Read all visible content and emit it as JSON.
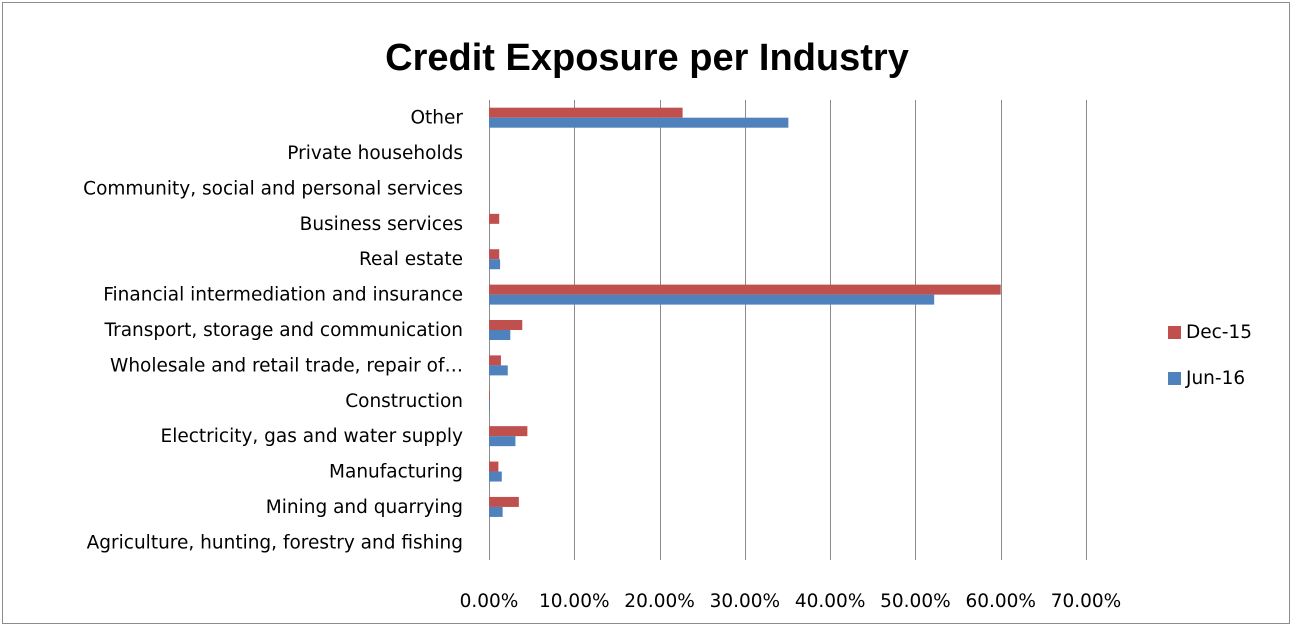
{
  "chart_data": {
    "type": "bar",
    "orientation": "horizontal",
    "title": "Credit Exposure per Industry",
    "xlabel": "",
    "ylabel": "",
    "xlim": [
      0,
      0.7
    ],
    "x_ticks": [
      "0.00%",
      "10.00%",
      "20.00%",
      "30.00%",
      "40.00%",
      "50.00%",
      "60.00%",
      "70.00%"
    ],
    "grid": "vertical",
    "legend_position": "right",
    "categories": [
      "Other",
      "Private households",
      "Community, social and personal services",
      "Business services",
      "Real estate",
      "Financial intermediation and insurance",
      "Transport, storage and communication",
      "Wholesale and retail trade, repair of…",
      "Construction",
      "Electricity, gas and water supply",
      "Manufacturing",
      "Mining and quarrying",
      "Agriculture, hunting, forestry and fishing"
    ],
    "series": [
      {
        "name": "Dec-15",
        "color": "#C0504D",
        "values": [
          0.227,
          0.0,
          0.0,
          0.012,
          0.012,
          0.6,
          0.039,
          0.014,
          0.001,
          0.045,
          0.011,
          0.035,
          0.0
        ]
      },
      {
        "name": "Jun-16",
        "color": "#4F81BD",
        "values": [
          0.351,
          0.0,
          0.0,
          0.0,
          0.013,
          0.522,
          0.025,
          0.022,
          0.001,
          0.031,
          0.015,
          0.016,
          0.0
        ]
      }
    ]
  }
}
